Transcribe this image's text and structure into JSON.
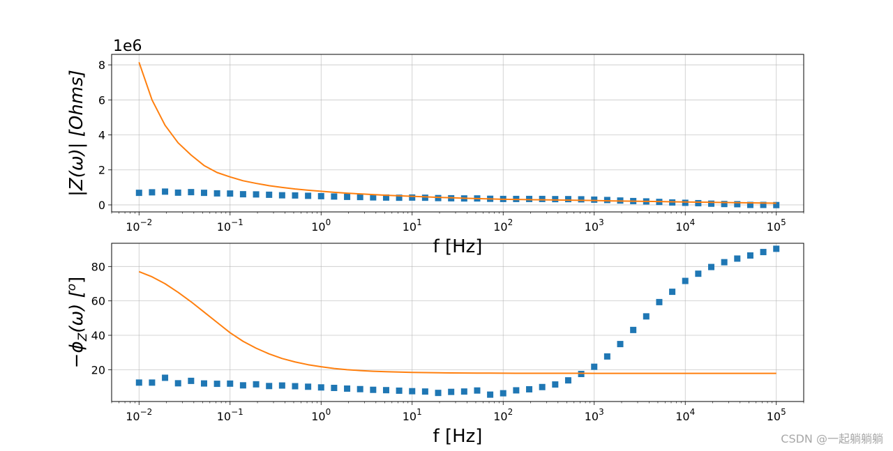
{
  "chart_data": [
    {
      "type": "scatter",
      "x_scale": "log",
      "xlim": [
        0.005,
        200000
      ],
      "ylim": [
        -400000,
        8600000
      ],
      "y_multiplier_label": "1e6",
      "ylabel": "|Z(ω)| [Ohms]",
      "xlabel": "f [Hz]",
      "grid": true,
      "x_ticks": [
        {
          "value": 0.01,
          "base": "10",
          "exp": "−2"
        },
        {
          "value": 0.1,
          "base": "10",
          "exp": "−1"
        },
        {
          "value": 1,
          "base": "10",
          "exp": "0"
        },
        {
          "value": 10,
          "base": "10",
          "exp": "1"
        },
        {
          "value": 100,
          "base": "10",
          "exp": "2"
        },
        {
          "value": 1000,
          "base": "10",
          "exp": "3"
        },
        {
          "value": 10000,
          "base": "10",
          "exp": "4"
        },
        {
          "value": 100000,
          "base": "10",
          "exp": "5"
        }
      ],
      "y_ticks": [
        {
          "value": 0,
          "label": "0"
        },
        {
          "value": 2000000,
          "label": "2"
        },
        {
          "value": 4000000,
          "label": "4"
        },
        {
          "value": 6000000,
          "label": "6"
        },
        {
          "value": 8000000,
          "label": "8"
        }
      ],
      "series": [
        {
          "kind": "markers",
          "color": "#1f77b4",
          "x": [
            0.01,
            0.01389,
            0.01931,
            0.02683,
            0.03728,
            0.0518,
            0.07197,
            0.1,
            0.1389,
            0.1931,
            0.2683,
            0.3728,
            0.518,
            0.7197,
            1.0,
            1.389,
            1.931,
            2.683,
            3.728,
            5.18,
            7.197,
            10.0,
            13.89,
            19.31,
            26.83,
            37.28,
            51.8,
            71.97,
            100.0,
            138.9,
            193.1,
            268.3,
            372.8,
            518.0,
            719.7,
            1000.0,
            1389.5,
            1930.7,
            2682.7,
            3727.6,
            5179.5,
            7196.9,
            10000.0,
            13895.0,
            19307.0,
            26827.0,
            37276.0,
            51795.0,
            71969.0,
            100000.0
          ],
          "y": [
            690000,
            720000,
            760000,
            700000,
            730000,
            690000,
            660000,
            650000,
            610000,
            600000,
            580000,
            550000,
            540000,
            520000,
            500000,
            480000,
            460000,
            450000,
            430000,
            420000,
            410000,
            420000,
            410000,
            390000,
            380000,
            370000,
            370000,
            350000,
            340000,
            340000,
            340000,
            340000,
            330000,
            330000,
            320000,
            300000,
            280000,
            250000,
            220000,
            200000,
            170000,
            140000,
            120000,
            100000,
            70000,
            50000,
            40000,
            0,
            0,
            -10000
          ]
        },
        {
          "kind": "line",
          "color": "#ff7f0e",
          "x": [
            0.01,
            0.01389,
            0.01931,
            0.02683,
            0.03728,
            0.0518,
            0.07197,
            0.1,
            0.1389,
            0.1931,
            0.2683,
            0.3728,
            0.518,
            0.7197,
            1.0,
            1.389,
            1.931,
            2.683,
            3.728,
            5.18,
            7.197,
            10.0,
            13.89,
            19.31,
            26.83,
            37.28,
            51.8,
            71.97,
            100.0,
            138.9,
            193.1,
            268.3,
            372.8,
            518.0,
            719.7,
            1000.0,
            1389.5,
            1930.7,
            2682.7,
            3727.6,
            5179.5,
            7196.9,
            10000.0,
            13895.0,
            19307.0,
            26827.0,
            37276.0,
            51795.0,
            71969.0,
            100000.0
          ],
          "y": [
            8150000,
            6000000,
            4550000,
            3550000,
            2850000,
            2250000,
            1850000,
            1600000,
            1380000,
            1230000,
            1100000,
            1000000,
            910000,
            840000,
            780000,
            720000,
            670000,
            630000,
            590000,
            550000,
            520000,
            490000,
            460000,
            430000,
            410000,
            380000,
            360000,
            340000,
            320000,
            310000,
            300000,
            290000,
            280000,
            270000,
            260000,
            250000,
            230000,
            220000,
            210000,
            200000,
            190000,
            180000,
            170000,
            160000,
            150000,
            140000,
            130000,
            120000,
            110000,
            100000
          ]
        }
      ]
    },
    {
      "type": "scatter",
      "x_scale": "log",
      "xlim": [
        0.005,
        200000
      ],
      "ylim": [
        1.5,
        93.5
      ],
      "ylabel_main": "−ϕ",
      "ylabel_sub": "Z",
      "ylabel_tail": "(ω) [",
      "ylabel_sup": "o",
      "ylabel_end": "]",
      "xlabel": "f [Hz]",
      "grid": true,
      "x_ticks": [
        {
          "value": 0.01,
          "base": "10",
          "exp": "−2"
        },
        {
          "value": 0.1,
          "base": "10",
          "exp": "−1"
        },
        {
          "value": 1,
          "base": "10",
          "exp": "0"
        },
        {
          "value": 10,
          "base": "10",
          "exp": "1"
        },
        {
          "value": 100,
          "base": "10",
          "exp": "2"
        },
        {
          "value": 1000,
          "base": "10",
          "exp": "3"
        },
        {
          "value": 10000,
          "base": "10",
          "exp": "4"
        },
        {
          "value": 100000,
          "base": "10",
          "exp": "5"
        }
      ],
      "y_ticks": [
        {
          "value": 20,
          "label": "20"
        },
        {
          "value": 40,
          "label": "40"
        },
        {
          "value": 60,
          "label": "60"
        },
        {
          "value": 80,
          "label": "80"
        }
      ],
      "series": [
        {
          "kind": "markers",
          "color": "#1f77b4",
          "x": [
            0.01,
            0.01389,
            0.01931,
            0.02683,
            0.03728,
            0.0518,
            0.07197,
            0.1,
            0.1389,
            0.1931,
            0.2683,
            0.3728,
            0.518,
            0.7197,
            1.0,
            1.389,
            1.931,
            2.683,
            3.728,
            5.18,
            7.197,
            10.0,
            13.89,
            19.31,
            26.83,
            37.28,
            51.8,
            71.97,
            100.0,
            138.9,
            193.1,
            268.3,
            372.8,
            518.0,
            719.7,
            1000.0,
            1389.5,
            1930.7,
            2682.7,
            3727.6,
            5179.5,
            7196.9,
            10000.0,
            13895.0,
            19307.0,
            26827.0,
            37276.0,
            51795.0,
            71969.0,
            100000.0
          ],
          "y": [
            12.5,
            12.5,
            15.3,
            12.1,
            13.5,
            12.0,
            11.8,
            11.9,
            10.9,
            11.5,
            10.5,
            10.8,
            10.4,
            10.1,
            9.7,
            9.4,
            9.0,
            8.7,
            8.3,
            8.1,
            7.8,
            7.5,
            7.3,
            6.5,
            7.1,
            7.3,
            7.9,
            5.5,
            6.3,
            8.0,
            8.6,
            9.9,
            11.4,
            13.8,
            17.5,
            21.7,
            27.7,
            34.9,
            43.1,
            51.0,
            59.3,
            65.3,
            71.6,
            75.8,
            79.7,
            82.5,
            84.6,
            86.4,
            88.4,
            90.3
          ]
        },
        {
          "kind": "line",
          "color": "#ff7f0e",
          "x": [
            0.01,
            0.01389,
            0.01931,
            0.02683,
            0.03728,
            0.0518,
            0.07197,
            0.1,
            0.1389,
            0.1931,
            0.2683,
            0.3728,
            0.518,
            0.7197,
            1.0,
            1.389,
            1.931,
            2.683,
            3.728,
            5.18,
            7.197,
            10.0,
            13.89,
            19.31,
            26.83,
            37.28,
            51.8,
            71.97,
            100.0,
            138.9,
            193.1,
            268.3,
            372.8,
            518.0,
            719.7,
            1000.0,
            1389.5,
            1930.7,
            2682.7,
            3727.6,
            5179.5,
            7196.9,
            10000.0,
            13895.0,
            19307.0,
            26827.0,
            37276.0,
            51795.0,
            71969.0,
            100000.0
          ],
          "y": [
            77.0,
            74.0,
            70.0,
            65.0,
            59.5,
            53.5,
            47.5,
            41.5,
            36.5,
            32.5,
            29.2,
            26.5,
            24.5,
            22.9,
            21.7,
            20.7,
            20.0,
            19.5,
            19.1,
            18.8,
            18.6,
            18.4,
            18.3,
            18.2,
            18.1,
            18.05,
            18.0,
            18.0,
            17.95,
            17.9,
            17.9,
            17.9,
            17.9,
            17.9,
            17.9,
            17.85,
            17.85,
            17.85,
            17.85,
            17.85,
            17.85,
            17.85,
            17.85,
            17.85,
            17.85,
            17.85,
            17.85,
            17.85,
            17.85,
            17.85
          ]
        }
      ]
    }
  ],
  "watermark": "CSDN @一起躺躺躺"
}
